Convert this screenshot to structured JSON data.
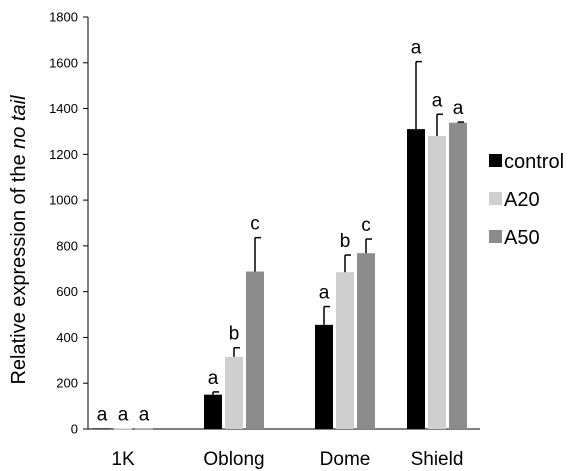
{
  "chart_data": {
    "type": "bar",
    "ylabel_prefix": "Relative expression of the ",
    "ylabel_italic": "no tail",
    "xlabel": "",
    "ylim": [
      0,
      1800
    ],
    "yticks": [
      0,
      200,
      400,
      600,
      800,
      1000,
      1200,
      1400,
      1600,
      1800
    ],
    "categories": [
      "1K",
      "Oblong",
      "Dome",
      "Shield"
    ],
    "legend_position": "right",
    "grid": false,
    "series": [
      {
        "name": "control",
        "color": "#000000",
        "values": [
          3,
          150,
          455,
          1310
        ],
        "errors": [
          0,
          12,
          80,
          295
        ],
        "letters": [
          "a",
          "a",
          "a",
          "a"
        ]
      },
      {
        "name": "A20",
        "color": "#cfcfcf",
        "values": [
          3,
          315,
          685,
          1280
        ],
        "errors": [
          0,
          40,
          75,
          95
        ],
        "letters": [
          "a",
          "b",
          "b",
          "a"
        ]
      },
      {
        "name": "A50",
        "color": "#8c8c8c",
        "values": [
          3,
          688,
          768,
          1338
        ],
        "errors": [
          0,
          148,
          62,
          3
        ],
        "letters": [
          "a",
          "c",
          "c",
          "a"
        ]
      }
    ]
  }
}
